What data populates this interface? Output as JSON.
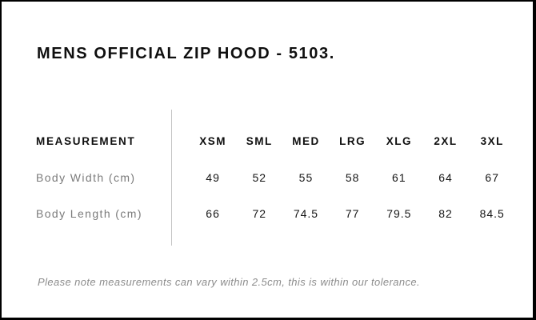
{
  "title": "MENS OFFICIAL ZIP HOOD - 5103.",
  "table": {
    "measurement_header": "MEASUREMENT",
    "sizes": [
      "XSM",
      "SML",
      "MED",
      "LRG",
      "XLG",
      "2XL",
      "3XL"
    ],
    "rows": [
      {
        "label": "Body Width (cm)",
        "values": [
          "49",
          "52",
          "55",
          "58",
          "61",
          "64",
          "67"
        ]
      },
      {
        "label": "Body Length (cm)",
        "values": [
          "66",
          "72",
          "74.5",
          "77",
          "79.5",
          "82",
          "84.5"
        ]
      }
    ]
  },
  "note": "Please note measurements can vary within 2.5cm, this is within our tolerance.",
  "colors": {
    "background": "#ffffff",
    "border": "#000000",
    "title_text": "#0f0f0f",
    "header_text": "#0f0f0f",
    "value_text": "#161616",
    "label_gray": "#7b7b7b",
    "note_gray": "#8c8c8c",
    "divider_gray": "#c4c4c4"
  }
}
